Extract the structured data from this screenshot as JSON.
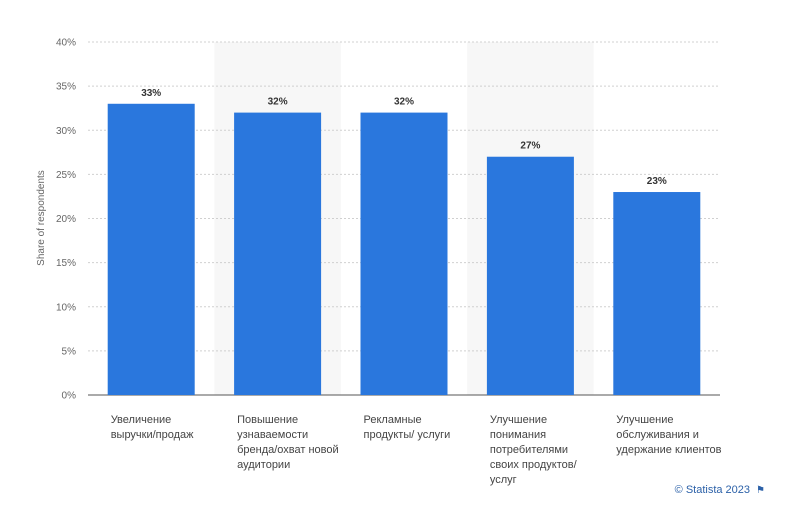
{
  "chart_data": {
    "type": "bar",
    "categories": [
      [
        "Увеличение",
        "выручки/продаж"
      ],
      [
        "Повышение",
        "узнаваемости",
        "бренда/охват новой",
        "аудитории"
      ],
      [
        "Рекламные",
        "продукты/ услуги"
      ],
      [
        "Улучшение",
        "понимания",
        "потребителями",
        "своих продуктов/",
        "услуг"
      ],
      [
        "Улучшение",
        "обслуживания и",
        "удержание клиентов"
      ]
    ],
    "values": [
      33,
      32,
      32,
      27,
      23
    ],
    "value_labels": [
      "33%",
      "32%",
      "32%",
      "27%",
      "23%"
    ],
    "ylabel": "Share of respondents",
    "ylim": [
      0,
      40
    ],
    "yticks": [
      0,
      5,
      10,
      15,
      20,
      25,
      30,
      35,
      40
    ],
    "ytick_labels": [
      "0%",
      "5%",
      "10%",
      "15%",
      "20%",
      "25%",
      "30%",
      "35%",
      "40%"
    ],
    "bar_color": "#2a77dd",
    "band_color": "#f7f7f7",
    "grid": true
  },
  "credit": {
    "text": "© Statista 2023",
    "flag_icon": "flag-icon"
  }
}
